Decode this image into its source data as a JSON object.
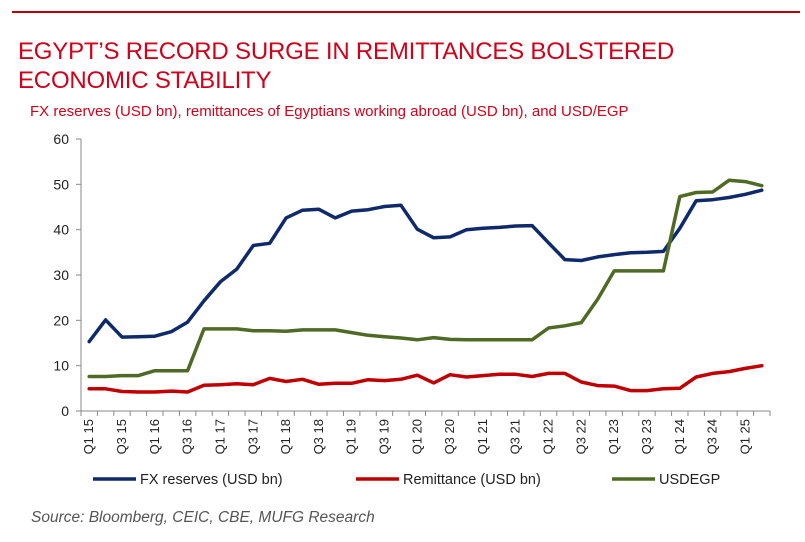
{
  "title": "EGYPT’S RECORD SURGE IN REMITTANCES BOLSTERED ECONOMIC STABILITY",
  "subtitle": "FX reserves (USD bn), remittances of Egyptians working abroad (USD bn), and USD/EGP",
  "source": "Source: Bloomberg, CEIC, CBE, MUFG Research",
  "chart_data": {
    "type": "line",
    "title": "EGYPT’S RECORD SURGE IN REMITTANCES BOLSTERED ECONOMIC STABILITY",
    "ylim": [
      0,
      60
    ],
    "yticks": [
      0,
      10,
      20,
      30,
      40,
      50,
      60
    ],
    "x": [
      "Q1 15",
      "Q2 15",
      "Q3 15",
      "Q4 15",
      "Q1 16",
      "Q2 16",
      "Q3 16",
      "Q4 16",
      "Q1 17",
      "Q2 17",
      "Q3 17",
      "Q4 17",
      "Q1 18",
      "Q2 18",
      "Q3 18",
      "Q4 18",
      "Q1 19",
      "Q2 19",
      "Q3 19",
      "Q4 19",
      "Q1 20",
      "Q2 20",
      "Q3 20",
      "Q4 20",
      "Q1 21",
      "Q2 21",
      "Q3 21",
      "Q4 21",
      "Q1 22",
      "Q2 22",
      "Q3 22",
      "Q4 22",
      "Q1 23",
      "Q2 23",
      "Q3 23",
      "Q4 23",
      "Q1 24",
      "Q2 24",
      "Q3 24",
      "Q4 24",
      "Q1 25",
      "Q2 25"
    ],
    "xtick_labels": [
      "Q1 15",
      "Q3 15",
      "Q1 16",
      "Q3 16",
      "Q1 17",
      "Q3 17",
      "Q1 18",
      "Q3 18",
      "Q1 19",
      "Q3 19",
      "Q1 20",
      "Q3 20",
      "Q1 21",
      "Q3 21",
      "Q1 22",
      "Q3 22",
      "Q1 23",
      "Q3 23",
      "Q1 24",
      "Q3 24",
      "Q1 25"
    ],
    "series": [
      {
        "name": "FX reserves (USD bn)",
        "color": "#0f2a6b",
        "values": [
          15.3,
          20.1,
          16.3,
          16.4,
          16.5,
          17.5,
          19.6,
          24.3,
          28.5,
          31.3,
          36.5,
          37.0,
          42.6,
          44.3,
          44.5,
          42.6,
          44.1,
          44.4,
          45.1,
          45.4,
          40.1,
          38.2,
          38.4,
          40.0,
          40.3,
          40.5,
          40.8,
          40.9,
          37.1,
          33.4,
          33.2,
          34.0,
          34.5,
          34.9,
          35.0,
          35.2,
          40.3,
          46.4,
          46.6,
          47.1,
          47.8,
          48.7
        ]
      },
      {
        "name": "Remittance (USD bn)",
        "color": "#c00000",
        "values": [
          4.9,
          4.9,
          4.3,
          4.2,
          4.2,
          4.4,
          4.2,
          5.7,
          5.8,
          6.0,
          5.8,
          7.2,
          6.5,
          7.0,
          5.9,
          6.1,
          6.1,
          6.9,
          6.7,
          7.0,
          7.9,
          6.2,
          8.0,
          7.5,
          7.8,
          8.1,
          8.1,
          7.6,
          8.3,
          8.3,
          6.4,
          5.6,
          5.5,
          4.5,
          4.5,
          4.9,
          5.0,
          7.5,
          8.3,
          8.7,
          9.4,
          10.0
        ]
      },
      {
        "name": "USDEGP",
        "color": "#4e6a24",
        "values": [
          7.6,
          7.6,
          7.8,
          7.8,
          8.9,
          8.9,
          8.9,
          18.1,
          18.1,
          18.1,
          17.7,
          17.7,
          17.6,
          17.9,
          17.9,
          17.9,
          17.3,
          16.7,
          16.4,
          16.1,
          15.7,
          16.2,
          15.8,
          15.7,
          15.7,
          15.7,
          15.7,
          15.7,
          18.3,
          18.8,
          19.5,
          24.7,
          30.9,
          30.9,
          30.9,
          30.9,
          47.3,
          48.2,
          48.3,
          50.9,
          50.6,
          49.7
        ]
      }
    ],
    "legend": [
      "FX reserves (USD bn)",
      "Remittance (USD bn)",
      "USDEGP"
    ],
    "legend_position": "bottom",
    "grid": false
  }
}
